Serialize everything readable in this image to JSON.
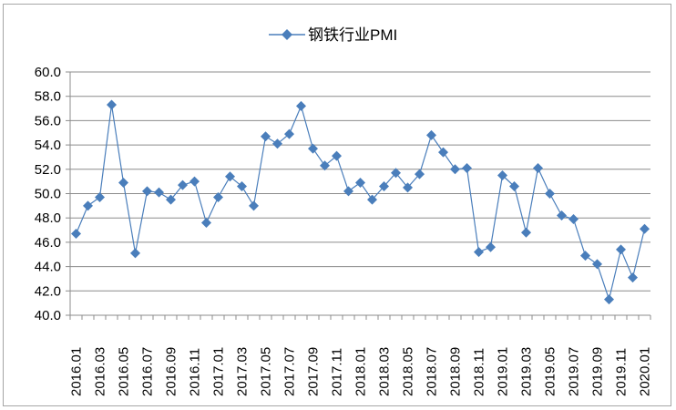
{
  "chart_data": {
    "type": "line",
    "title": "",
    "legend": [
      "钢铁行业PMI"
    ],
    "legend_position": "top",
    "xlabel": "",
    "ylabel": "",
    "ylim": [
      40.0,
      60.0
    ],
    "yticks": [
      "60.0",
      "58.0",
      "56.0",
      "54.0",
      "52.0",
      "50.0",
      "48.0",
      "46.0",
      "44.0",
      "42.0",
      "40.0"
    ],
    "grid": true,
    "x": [
      "2016.01",
      "2016.02",
      "2016.03",
      "2016.04",
      "2016.05",
      "2016.06",
      "2016.07",
      "2016.08",
      "2016.09",
      "2016.10",
      "2016.11",
      "2016.12",
      "2017.01",
      "2017.02",
      "2017.03",
      "2017.04",
      "2017.05",
      "2017.06",
      "2017.07",
      "2017.08",
      "2017.09",
      "2017.10",
      "2017.11",
      "2017.12",
      "2018.01",
      "2018.02",
      "2018.03",
      "2018.04",
      "2018.05",
      "2018.06",
      "2018.07",
      "2018.08",
      "2018.09",
      "2018.10",
      "2018.11",
      "2018.12",
      "2019.01",
      "2019.02",
      "2019.03",
      "2019.04",
      "2019.05",
      "2019.06",
      "2019.07",
      "2019.08",
      "2019.09",
      "2019.10",
      "2019.11",
      "2019.12",
      "2020.01"
    ],
    "xtick_labels": [
      "2016.01",
      "2016.03",
      "2016.05",
      "2016.07",
      "2016.09",
      "2016.11",
      "2017.01",
      "2017.03",
      "2017.05",
      "2017.07",
      "2017.09",
      "2017.11",
      "2018.01",
      "2018.03",
      "2018.05",
      "2018.07",
      "2018.09",
      "2018.11",
      "2019.01",
      "2019.03",
      "2019.05",
      "2019.07",
      "2019.09",
      "2019.11",
      "2020.01"
    ],
    "series": [
      {
        "name": "钢铁行业PMI",
        "color": "#4a7ebb",
        "marker": "diamond",
        "values": [
          46.7,
          49.0,
          49.7,
          57.3,
          50.9,
          45.1,
          50.2,
          50.1,
          49.5,
          50.7,
          51.0,
          47.6,
          49.7,
          51.4,
          50.6,
          49.0,
          54.7,
          54.1,
          54.9,
          57.2,
          53.7,
          52.3,
          53.1,
          50.2,
          50.9,
          49.5,
          50.6,
          51.7,
          50.5,
          51.6,
          54.8,
          53.4,
          52.0,
          52.1,
          45.2,
          45.6,
          51.5,
          50.6,
          46.8,
          52.1,
          50.0,
          48.2,
          47.9,
          44.9,
          44.2,
          41.3,
          45.4,
          43.1,
          47.1
        ]
      }
    ]
  }
}
